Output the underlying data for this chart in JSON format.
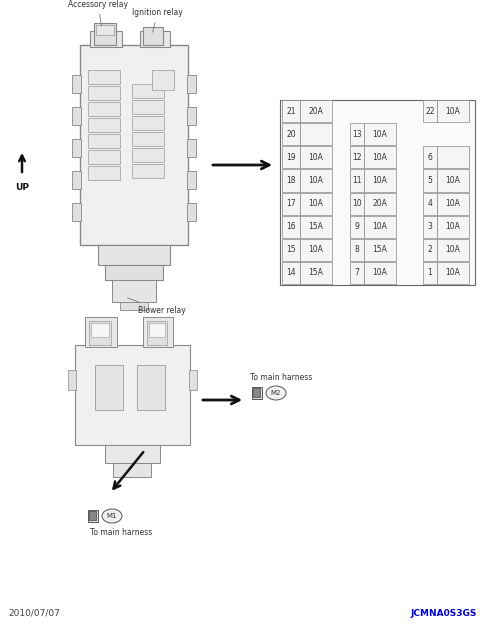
{
  "bg_color": "#ffffff",
  "title_date": "2010/07/07",
  "title_code": "JCMNA0S3GS",
  "fuse_table": {
    "left_col": [
      {
        "num": "21",
        "val": "20A"
      },
      {
        "num": "20",
        "val": ""
      },
      {
        "num": "19",
        "val": "10A"
      },
      {
        "num": "18",
        "val": "10A"
      },
      {
        "num": "17",
        "val": "10A"
      },
      {
        "num": "16",
        "val": "15A"
      },
      {
        "num": "15",
        "val": "10A"
      },
      {
        "num": "14",
        "val": "15A"
      }
    ],
    "mid_col": [
      {
        "num": "13",
        "val": "10A"
      },
      {
        "num": "12",
        "val": "10A"
      },
      {
        "num": "11",
        "val": "10A"
      },
      {
        "num": "10",
        "val": "20A"
      },
      {
        "num": "9",
        "val": "10A"
      },
      {
        "num": "8",
        "val": "15A"
      },
      {
        "num": "7",
        "val": "10A"
      }
    ],
    "right_col": [
      {
        "num": "22",
        "val": "10A"
      },
      {
        "num": "",
        "val": ""
      },
      {
        "num": "6",
        "val": ""
      },
      {
        "num": "5",
        "val": "10A"
      },
      {
        "num": "4",
        "val": "10A"
      },
      {
        "num": "3",
        "val": "10A"
      },
      {
        "num": "2",
        "val": "10A"
      },
      {
        "num": "1",
        "val": "10A"
      }
    ]
  },
  "labels": {
    "accessory_relay": "Accessory relay",
    "ignition_relay": "Ignition relay",
    "blower_relay": "Blower relay",
    "to_main_harness": "To main harness",
    "m1_label": "M1",
    "m2_label": "M2",
    "up_label": "UP"
  },
  "line_color": "#777777",
  "cell_ec": "#888888",
  "cell_fc": "#f5f5f5",
  "box_ec": "#888888",
  "box_fc": "#eeeeee",
  "text_color": "#333333",
  "arrow_color": "#111111",
  "footer_date_color": "#444444",
  "footer_code_color": "#0000cc"
}
